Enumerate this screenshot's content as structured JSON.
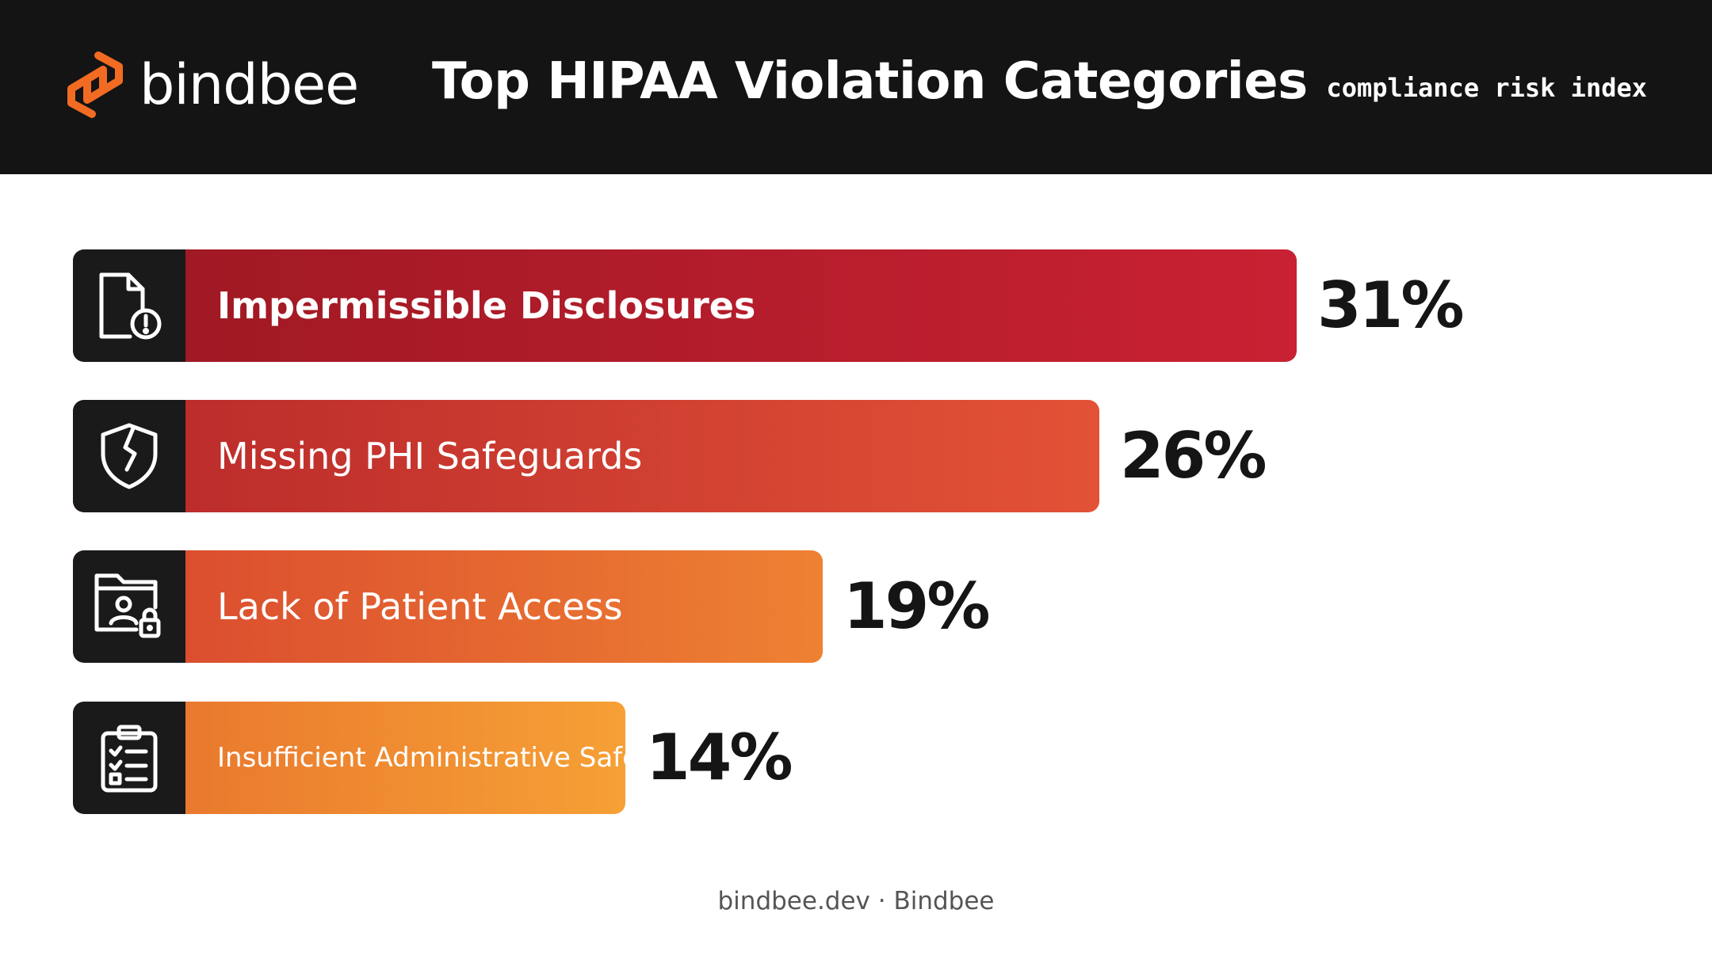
{
  "header": {
    "brand": "bindbee",
    "title": "Top HIPAA Violation Categories",
    "tagline": "compliance risk index"
  },
  "footer": "bindbee.dev · Bindbee",
  "colors": {
    "header_bg": "#141414",
    "brand_orange": "#f26b22",
    "icon_box": "#1a1a1a"
  },
  "chart_data": {
    "type": "bar",
    "orientation": "horizontal",
    "title": "Top HIPAA Violation Categories",
    "unit": "%",
    "xlim": [
      0,
      31
    ],
    "grid": false,
    "categories": [
      "Impermissible Disclosures",
      "Missing PHI Safeguards",
      "Lack of Patient Access",
      "Insufficient Administrative Safeguards"
    ],
    "values": [
      31,
      26,
      19,
      14
    ],
    "value_labels": [
      "31%",
      "26%",
      "19%",
      "14%"
    ],
    "icons": [
      "document-alert-icon",
      "broken-shield-icon",
      "folder-user-lock-icon",
      "clipboard-checklist-icon"
    ],
    "bar_gradients": [
      [
        "#9c1822",
        "#c92133"
      ],
      [
        "#b8282a",
        "#e35236"
      ],
      [
        "#d8452e",
        "#ee8132"
      ],
      [
        "#e66f2c",
        "#f6a035"
      ]
    ]
  }
}
